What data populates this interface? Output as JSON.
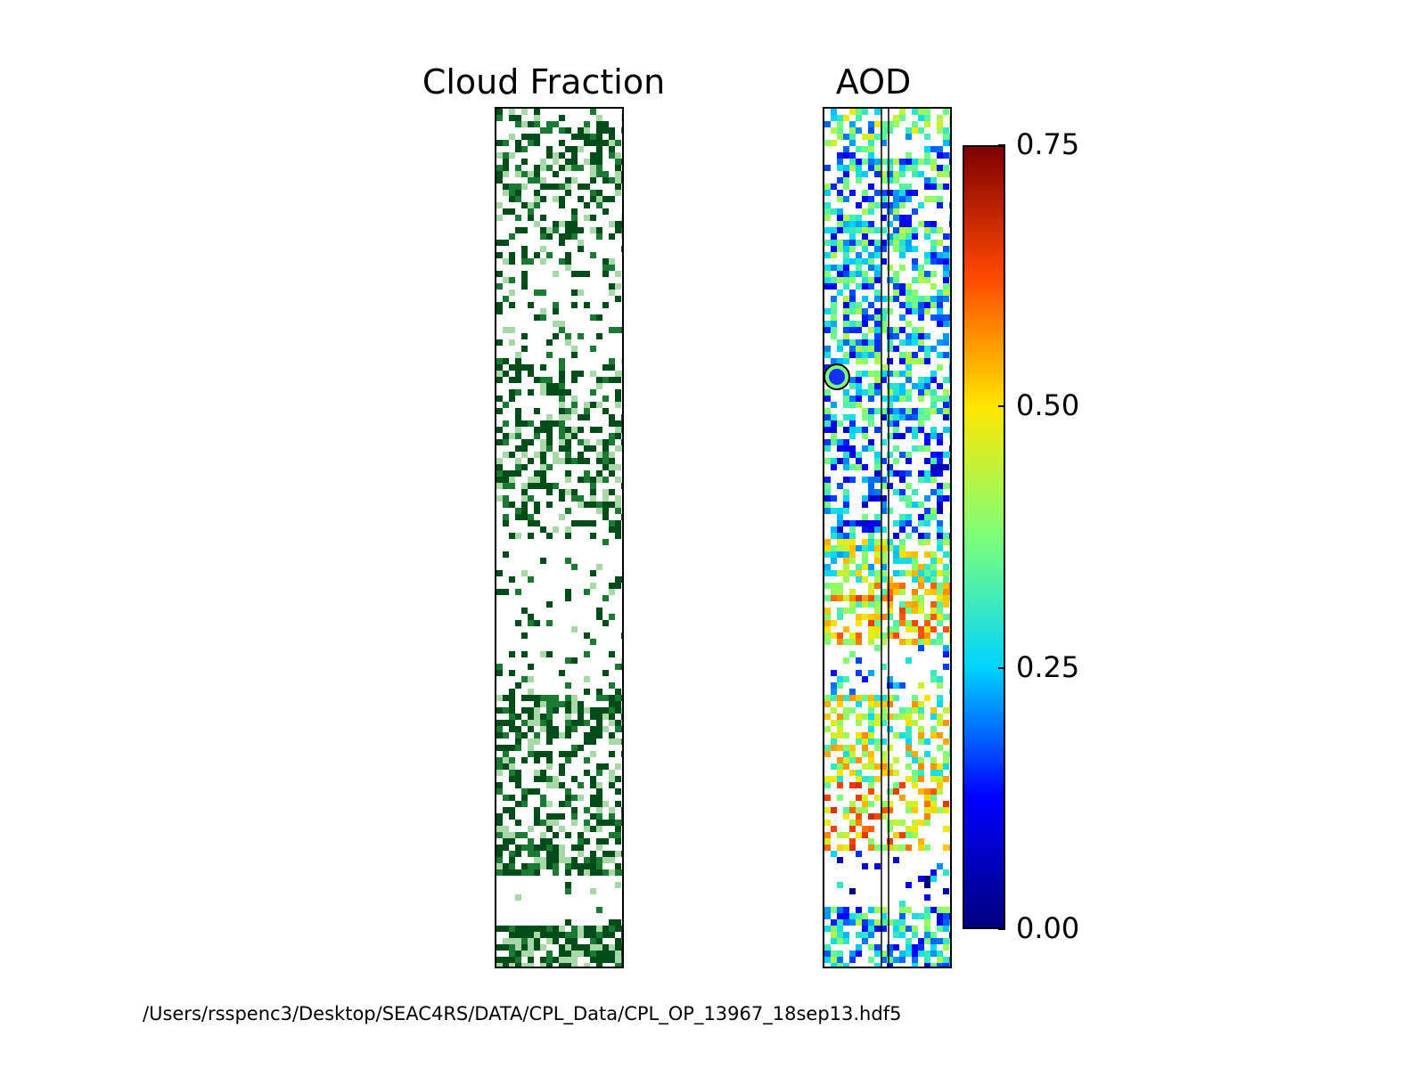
{
  "chart_data": [
    {
      "type": "heatmap",
      "title": "Cloud Fraction",
      "colormap": [
        "#ffffff",
        "#a8d8a8",
        "#1a7a33",
        "#004d1a"
      ],
      "colorbar": false
    },
    {
      "type": "heatmap",
      "title": "AOD",
      "colormap": [
        "#00007f",
        "#0000ff",
        "#00d4ff",
        "#7cff79",
        "#ffe600",
        "#ff4800",
        "#7f0000"
      ],
      "colorbar": {
        "range": [
          0.0,
          0.75
        ],
        "ticks": [
          "0.75",
          "0.50",
          "0.25",
          "0.00"
        ],
        "tick_values": [
          0.75,
          0.5,
          0.25,
          0.0
        ]
      },
      "marker": {
        "shape": "circle",
        "fill": "#1430ff",
        "edge": "#7cff79",
        "value": 0.1
      }
    }
  ],
  "footer": {
    "path": "/Users/rsspenc3/Desktop/SEAC4RS/DATA/CPL_Data/CPL_OP_13967_18sep13.hdf5"
  },
  "colors": {
    "background": "#ffffff",
    "frame": "#000000",
    "cloud_dark": "#004d1a",
    "cloud_light": "#a8d8a8"
  }
}
